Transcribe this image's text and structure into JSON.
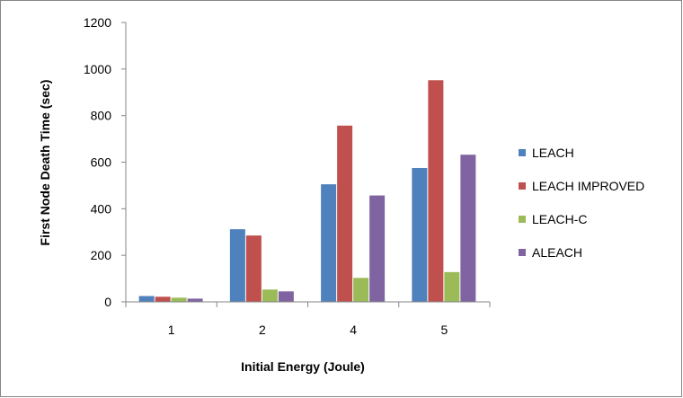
{
  "chart_data": {
    "type": "bar",
    "title": "",
    "xlabel": "Initial Energy (Joule)",
    "ylabel": "First Node Death Time (sec)",
    "categories": [
      "1",
      "2",
      "4",
      "5"
    ],
    "ylim": [
      0,
      1200
    ],
    "yticks": [
      "0",
      "200",
      "400",
      "600",
      "800",
      "1000",
      "1200"
    ],
    "grid": false,
    "legend_position": "right",
    "series": [
      {
        "name": "LEACH",
        "color": "#4f81bd",
        "values": [
          25,
          312,
          505,
          575
        ]
      },
      {
        "name": "LEACH IMPROVED",
        "color": "#c0504d",
        "values": [
          22,
          285,
          757,
          952
        ]
      },
      {
        "name": "LEACH-C",
        "color": "#9bbb59",
        "values": [
          18,
          53,
          103,
          128
        ]
      },
      {
        "name": "ALEACH",
        "color": "#8064a2",
        "values": [
          14,
          45,
          457,
          632
        ]
      }
    ]
  }
}
